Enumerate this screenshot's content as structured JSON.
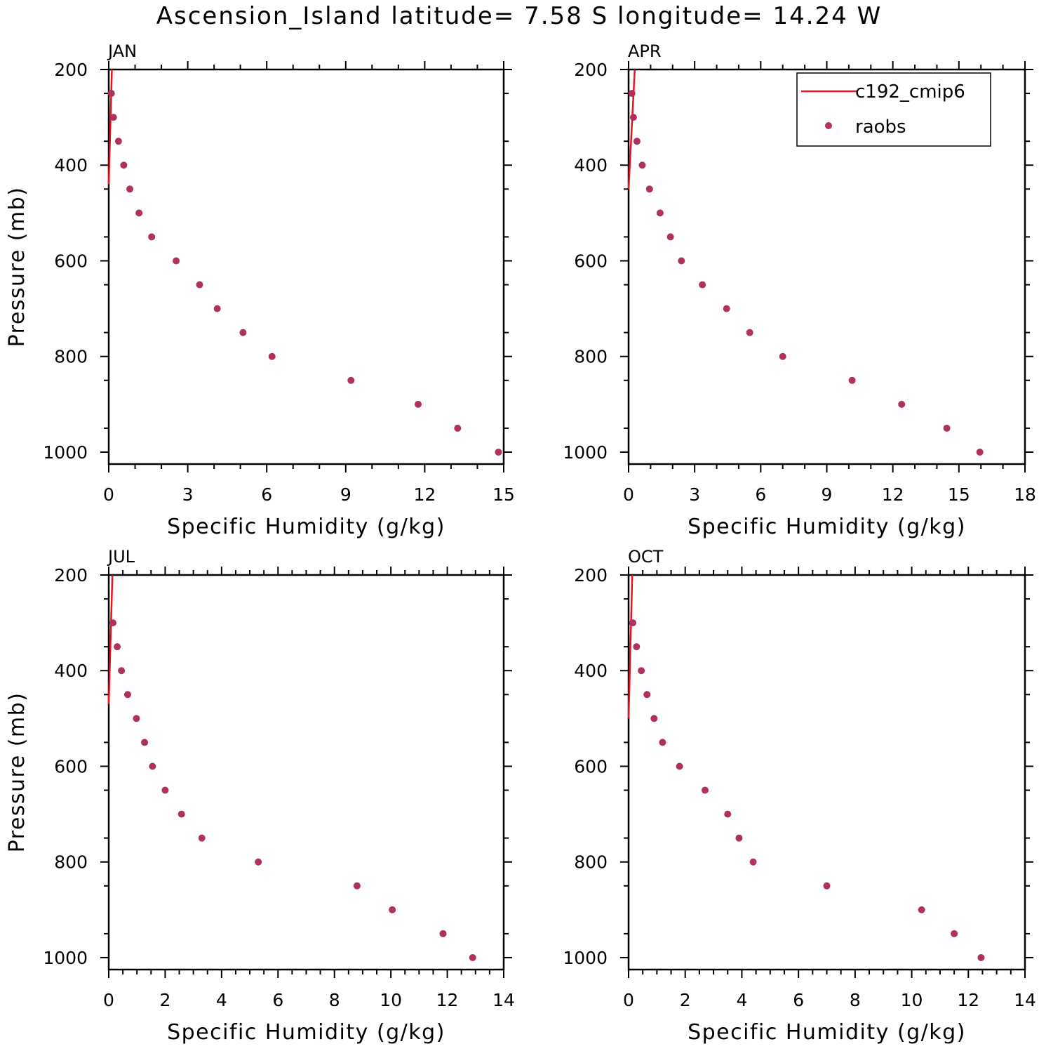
{
  "figure": {
    "title": "Ascension_Island  latitude= 7.58 S longitude= 14.24 W"
  },
  "colors": {
    "model": "#e8141c",
    "obs": "#b03060",
    "axis": "#000000"
  },
  "legend": {
    "model_label": "c192_cmip6",
    "obs_label": "raobs"
  },
  "chart_data": [
    {
      "type": "scatter",
      "title": "JAN",
      "xlabel": "Specific Humidity (g/kg)",
      "ylabel": "Pressure (mb)",
      "xlim": [
        0,
        15
      ],
      "xticks": [
        0,
        3,
        6,
        9,
        12,
        15
      ],
      "ylim": [
        200,
        1025
      ],
      "yticks": [
        200,
        400,
        600,
        800,
        1000
      ],
      "series": [
        {
          "name": "c192_cmip6",
          "kind": "line",
          "x": [
            0.12,
            0.0
          ],
          "y": [
            200,
            440
          ]
        },
        {
          "name": "raobs",
          "kind": "scatter",
          "x": [
            0.1,
            0.18,
            0.37,
            0.57,
            0.8,
            1.15,
            1.63,
            2.56,
            3.45,
            4.12,
            5.1,
            6.2,
            9.2,
            11.75,
            13.25,
            14.8
          ],
          "y": [
            250,
            300,
            350,
            400,
            450,
            500,
            550,
            600,
            650,
            700,
            750,
            800,
            850,
            900,
            950,
            1000
          ]
        }
      ]
    },
    {
      "type": "scatter",
      "title": "APR",
      "xlabel": "Specific Humidity (g/kg)",
      "ylabel": "",
      "xlim": [
        0,
        18
      ],
      "xticks": [
        0,
        3,
        6,
        9,
        12,
        15,
        18
      ],
      "ylim": [
        200,
        1025
      ],
      "yticks": [
        200,
        400,
        600,
        800,
        1000
      ],
      "legend": true,
      "series": [
        {
          "name": "c192_cmip6",
          "kind": "line",
          "x": [
            0.28,
            0.0
          ],
          "y": [
            200,
            450
          ]
        },
        {
          "name": "raobs",
          "kind": "scatter",
          "x": [
            0.15,
            0.22,
            0.38,
            0.62,
            0.95,
            1.43,
            1.9,
            2.4,
            3.35,
            4.45,
            5.5,
            7.0,
            10.15,
            12.4,
            14.45,
            15.95
          ],
          "y": [
            250,
            300,
            350,
            400,
            450,
            500,
            550,
            600,
            650,
            700,
            750,
            800,
            850,
            900,
            950,
            1000
          ]
        }
      ]
    },
    {
      "type": "scatter",
      "title": "JUL",
      "xlabel": "Specific Humidity (g/kg)",
      "ylabel": "Pressure (mb)",
      "xlim": [
        0,
        14
      ],
      "xticks": [
        0,
        2,
        4,
        6,
        8,
        10,
        12,
        14
      ],
      "ylim": [
        200,
        1025
      ],
      "yticks": [
        200,
        400,
        600,
        800,
        1000
      ],
      "series": [
        {
          "name": "c192_cmip6",
          "kind": "line",
          "x": [
            0.13,
            0.0
          ],
          "y": [
            200,
            470
          ]
        },
        {
          "name": "raobs",
          "kind": "scatter",
          "x": [
            0.15,
            0.3,
            0.45,
            0.67,
            0.98,
            1.27,
            1.55,
            2.0,
            2.58,
            3.3,
            5.3,
            8.8,
            10.05,
            11.85,
            12.9
          ],
          "y": [
            300,
            350,
            400,
            450,
            500,
            550,
            600,
            650,
            700,
            750,
            800,
            850,
            900,
            950,
            1000
          ]
        }
      ]
    },
    {
      "type": "scatter",
      "title": "OCT",
      "xlabel": "Specific Humidity (g/kg)",
      "ylabel": "",
      "xlim": [
        0,
        14
      ],
      "xticks": [
        0,
        2,
        4,
        6,
        8,
        10,
        12,
        14
      ],
      "ylim": [
        200,
        1025
      ],
      "yticks": [
        200,
        400,
        600,
        800,
        1000
      ],
      "series": [
        {
          "name": "c192_cmip6",
          "kind": "line",
          "x": [
            0.13,
            0.0
          ],
          "y": [
            200,
            500
          ]
        },
        {
          "name": "raobs",
          "kind": "scatter",
          "x": [
            0.15,
            0.28,
            0.45,
            0.65,
            0.9,
            1.2,
            1.8,
            2.7,
            3.5,
            3.9,
            4.4,
            7.0,
            10.35,
            11.5,
            12.45
          ],
          "y": [
            300,
            350,
            400,
            450,
            500,
            550,
            600,
            650,
            700,
            750,
            800,
            850,
            900,
            950,
            1000
          ]
        }
      ]
    }
  ]
}
